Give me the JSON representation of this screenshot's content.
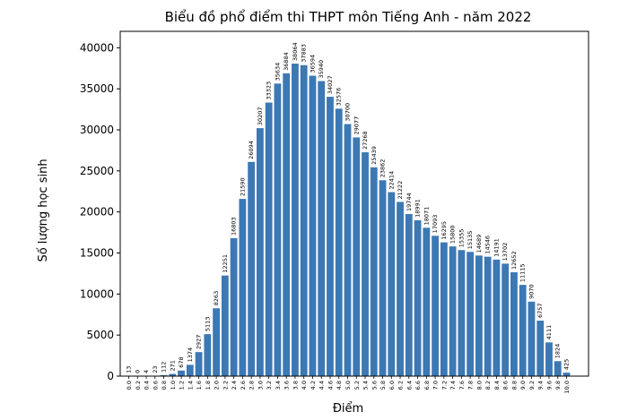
{
  "chart_data": {
    "type": "bar",
    "title": "Biểu đồ phổ điểm thi THPT môn Tiếng Anh - năm 2022",
    "xlabel": "Điểm",
    "ylabel": "Số lượng học sinh",
    "ylim": [
      0,
      42000
    ],
    "yticks": [
      "0",
      "5000",
      "10000",
      "15000",
      "20000",
      "25000",
      "30000",
      "35000",
      "40000"
    ],
    "grid": false,
    "bar_color": "#3c78b4",
    "categories": [
      "0.0",
      "0.2",
      "0.4",
      "0.6",
      "0.8",
      "1.0",
      "1.2",
      "1.4",
      "1.6",
      "1.8",
      "2.0",
      "2.2",
      "2.4",
      "2.6",
      "2.8",
      "3.0",
      "3.2",
      "3.4",
      "3.6",
      "3.8",
      "4.0",
      "4.2",
      "4.4",
      "4.6",
      "4.8",
      "5.0",
      "5.2",
      "5.4",
      "5.6",
      "5.8",
      "6.0",
      "6.2",
      "6.4",
      "6.6",
      "6.8",
      "7.0",
      "7.2",
      "7.4",
      "7.6",
      "7.8",
      "8.0",
      "8.2",
      "8.4",
      "8.6",
      "8.8",
      "9.0",
      "9.2",
      "9.4",
      "9.6",
      "9.8",
      "10.0"
    ],
    "values": [
      13,
      0,
      4,
      23,
      112,
      271,
      678,
      1374,
      2927,
      5113,
      8263,
      12251,
      16803,
      21590,
      26094,
      30207,
      33323,
      35634,
      36884,
      38064,
      37883,
      36594,
      35940,
      34027,
      32576,
      30700,
      29077,
      27268,
      25439,
      23862,
      22414,
      21222,
      19744,
      18991,
      18071,
      17093,
      16295,
      15800,
      15355,
      15135,
      14689,
      14546,
      14191,
      13702,
      12652,
      11115,
      9070,
      6757,
      4111,
      1824,
      425
    ]
  }
}
